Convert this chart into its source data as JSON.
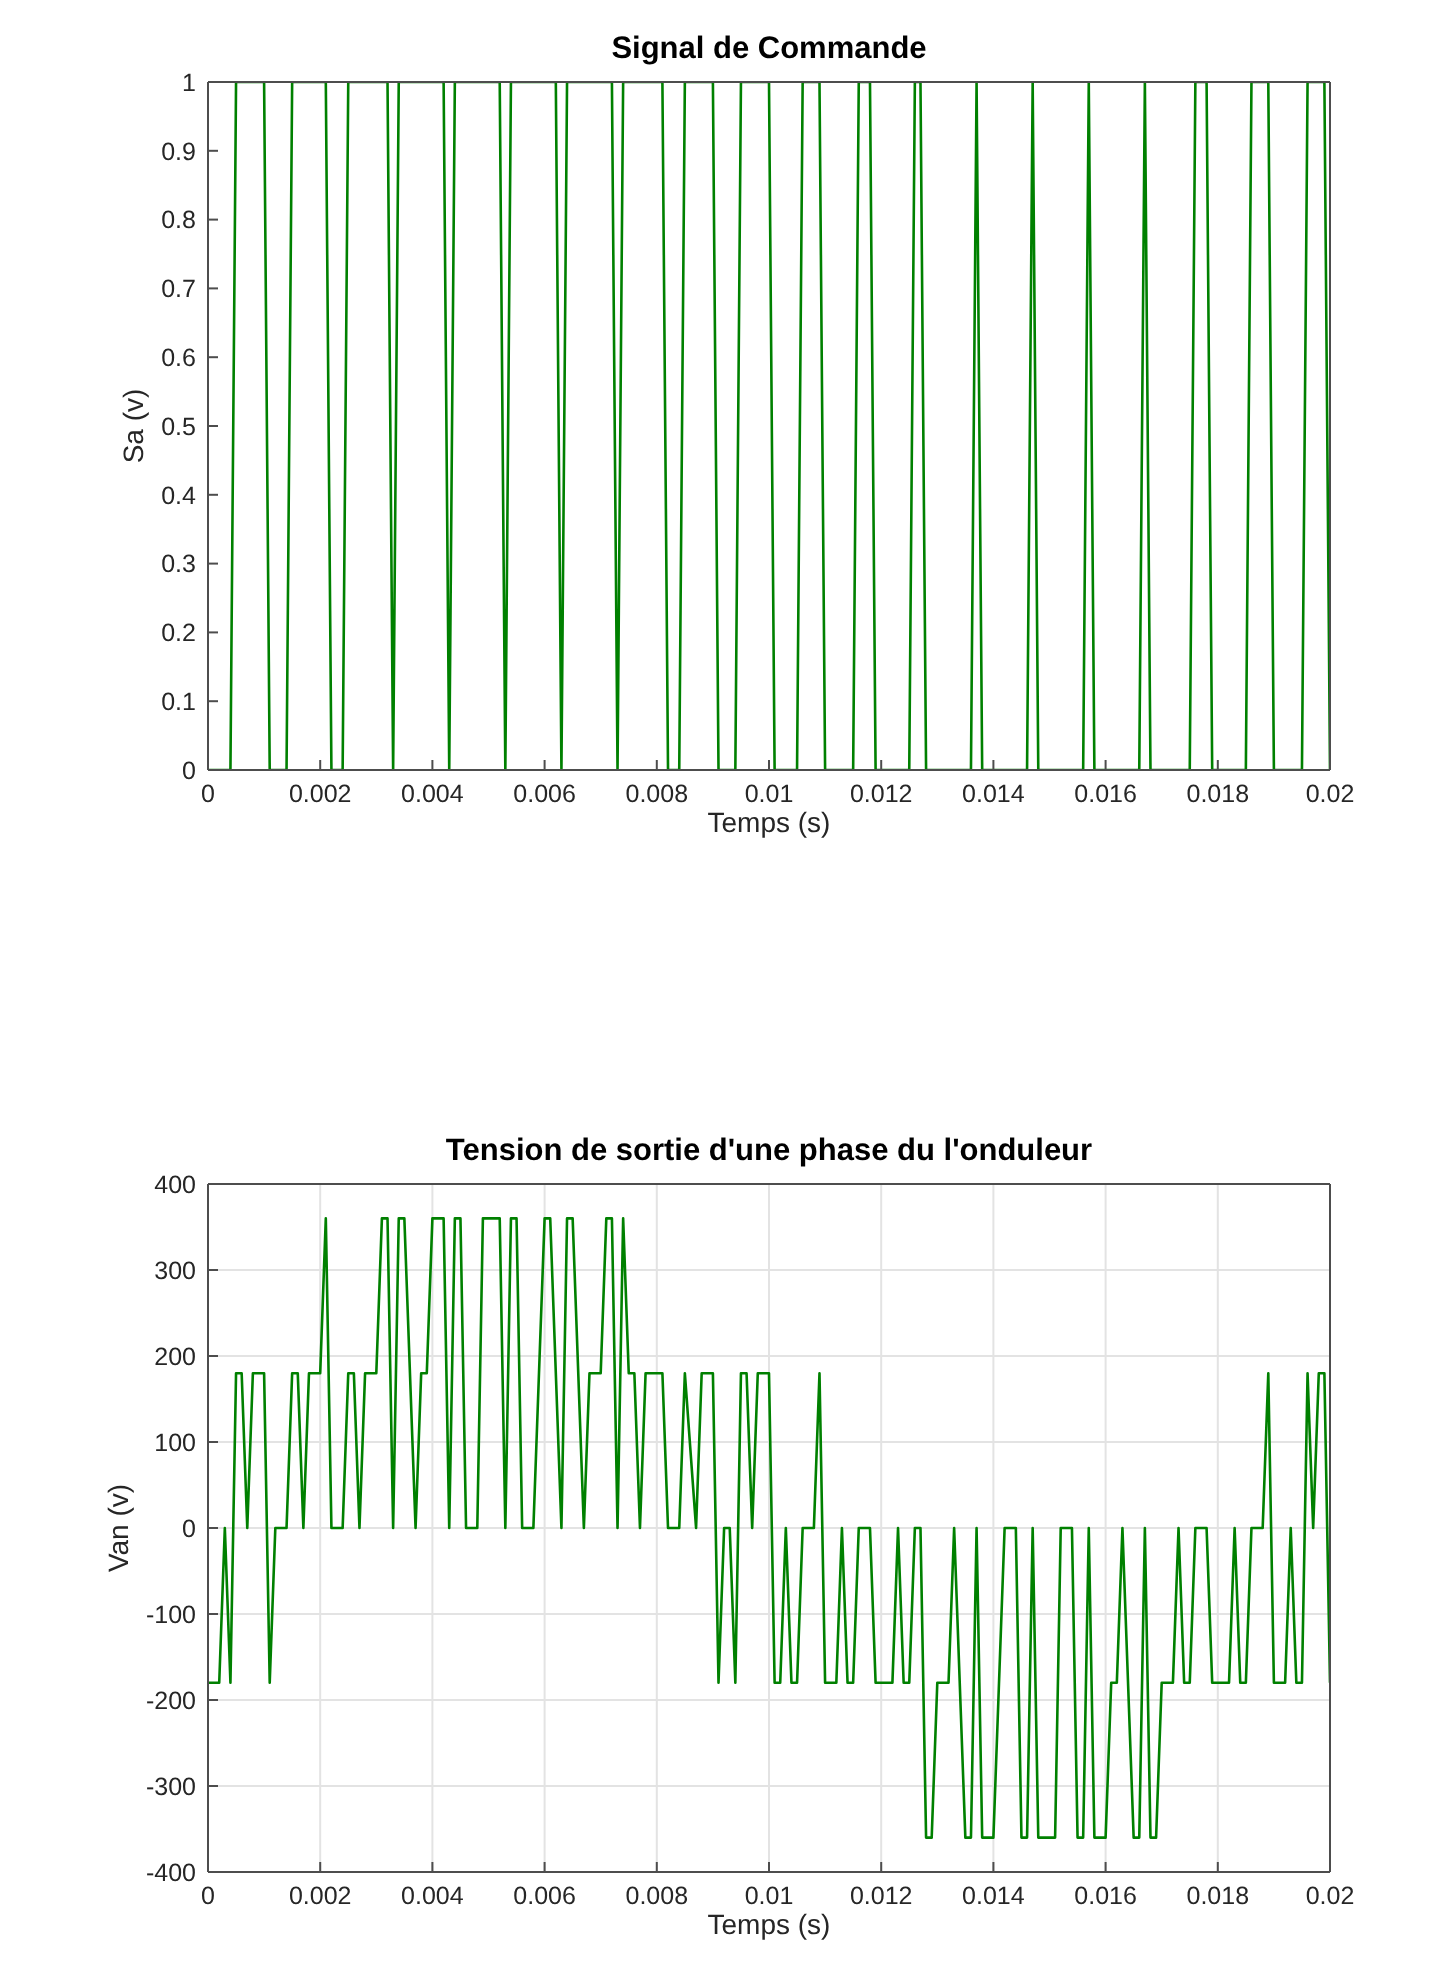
{
  "chart_data": [
    {
      "type": "line",
      "title": "Signal de Commande",
      "xlabel": "Temps (s)",
      "ylabel": "Sa (v)",
      "x": [
        0,
        0.0004,
        0.0005,
        0.001,
        0.0011,
        0.0014,
        0.0015,
        0.0021,
        0.0022,
        0.0024,
        0.0025,
        0.0032,
        0.0033,
        0.0034,
        0.0042,
        0.0043,
        0.0044,
        0.0052,
        0.0053,
        0.0054,
        0.0062,
        0.0063,
        0.0064,
        0.0072,
        0.0073,
        0.0074,
        0.0081,
        0.0082,
        0.0084,
        0.0085,
        0.009,
        0.0091,
        0.0094,
        0.0095,
        0.01,
        0.0101,
        0.0105,
        0.0106,
        0.0109,
        0.011,
        0.0115,
        0.0116,
        0.0118,
        0.0119,
        0.0125,
        0.0126,
        0.0127,
        0.0128,
        0.0136,
        0.0137,
        0.0138,
        0.0146,
        0.0147,
        0.0148,
        0.0156,
        0.0157,
        0.0158,
        0.0166,
        0.0167,
        0.0168,
        0.0175,
        0.0176,
        0.0178,
        0.0179,
        0.0185,
        0.0186,
        0.0189,
        0.019,
        0.0195,
        0.0196,
        0.0199,
        0.02
      ],
      "values": [
        0,
        0,
        1,
        1,
        0,
        0,
        1,
        1,
        0,
        0,
        1,
        1,
        0,
        1,
        1,
        0,
        1,
        1,
        0,
        1,
        1,
        0,
        1,
        1,
        0,
        1,
        1,
        0,
        0,
        1,
        1,
        0,
        0,
        1,
        1,
        0,
        0,
        1,
        1,
        0,
        0,
        1,
        1,
        0,
        0,
        1,
        1,
        0,
        0,
        1,
        0,
        0,
        1,
        0,
        0,
        1,
        0,
        0,
        1,
        0,
        0,
        1,
        1,
        0,
        0,
        1,
        1,
        0,
        0,
        1,
        1,
        0
      ],
      "color": "#008000",
      "xlim": [
        0,
        0.02
      ],
      "ylim": [
        0,
        1
      ],
      "xticks": [
        0,
        0.002,
        0.004,
        0.006,
        0.008,
        0.01,
        0.012,
        0.014,
        0.016,
        0.018,
        0.02
      ],
      "yticks": [
        0,
        0.1,
        0.2,
        0.3,
        0.4,
        0.5,
        0.6,
        0.7,
        0.8,
        0.9,
        1
      ]
    },
    {
      "type": "line",
      "title": "Tension de sortie d'une phase du l'onduleur",
      "xlabel": "Temps (s)",
      "ylabel": "Van (v)",
      "x": [
        0,
        0.0002,
        0.0003,
        0.0004,
        0.0005,
        0.0006,
        0.0007,
        0.0008,
        0.001,
        0.0011,
        0.0012,
        0.0014,
        0.0015,
        0.0016,
        0.0017,
        0.0018,
        0.002,
        0.0021,
        0.0022,
        0.0024,
        0.0025,
        0.0026,
        0.0027,
        0.0028,
        0.003,
        0.0031,
        0.0032,
        0.0033,
        0.0034,
        0.0035,
        0.0037,
        0.0038,
        0.0039,
        0.004,
        0.0042,
        0.0043,
        0.0044,
        0.0045,
        0.0046,
        0.0048,
        0.0049,
        0.0052,
        0.0053,
        0.0054,
        0.0055,
        0.0056,
        0.0058,
        0.006,
        0.0061,
        0.0063,
        0.0064,
        0.0065,
        0.0067,
        0.0068,
        0.007,
        0.0071,
        0.0072,
        0.0073,
        0.0074,
        0.0075,
        0.0076,
        0.0077,
        0.0078,
        0.0081,
        0.0082,
        0.0084,
        0.0085,
        0.0087,
        0.0088,
        0.009,
        0.0091,
        0.0092,
        0.0093,
        0.0094,
        0.0095,
        0.0096,
        0.0097,
        0.0098,
        0.01,
        0.0101,
        0.0102,
        0.0103,
        0.0104,
        0.0105,
        0.0106,
        0.0108,
        0.0109,
        0.011,
        0.0112,
        0.0113,
        0.0114,
        0.0115,
        0.0116,
        0.0118,
        0.0119,
        0.0122,
        0.0123,
        0.0124,
        0.0125,
        0.0126,
        0.0127,
        0.0128,
        0.0129,
        0.013,
        0.0132,
        0.0133,
        0.0135,
        0.0136,
        0.0137,
        0.0138,
        0.014,
        0.0142,
        0.0144,
        0.0145,
        0.0146,
        0.0147,
        0.0148,
        0.0151,
        0.0152,
        0.0154,
        0.0155,
        0.0156,
        0.0157,
        0.0158,
        0.016,
        0.0161,
        0.0162,
        0.0163,
        0.0165,
        0.0166,
        0.0167,
        0.0168,
        0.0169,
        0.017,
        0.0172,
        0.0173,
        0.0174,
        0.0175,
        0.0176,
        0.0178,
        0.0179,
        0.0182,
        0.0183,
        0.0184,
        0.0185,
        0.0186,
        0.0188,
        0.0189,
        0.019,
        0.0192,
        0.0193,
        0.0194,
        0.0195,
        0.0196,
        0.0197,
        0.0198,
        0.0199,
        0.02
      ],
      "values": [
        -180,
        -180,
        0,
        -180,
        180,
        180,
        0,
        180,
        180,
        -180,
        0,
        0,
        180,
        180,
        0,
        180,
        180,
        360,
        0,
        0,
        180,
        180,
        0,
        180,
        180,
        360,
        360,
        0,
        360,
        360,
        0,
        180,
        180,
        360,
        360,
        0,
        360,
        360,
        0,
        0,
        360,
        360,
        0,
        360,
        360,
        0,
        0,
        360,
        360,
        0,
        360,
        360,
        0,
        180,
        180,
        360,
        360,
        0,
        360,
        180,
        180,
        0,
        180,
        180,
        0,
        0,
        180,
        0,
        180,
        180,
        -180,
        0,
        0,
        -180,
        180,
        180,
        0,
        180,
        180,
        -180,
        -180,
        0,
        -180,
        -180,
        0,
        0,
        180,
        -180,
        -180,
        0,
        -180,
        -180,
        0,
        0,
        -180,
        -180,
        0,
        -180,
        -180,
        0,
        0,
        -360,
        -360,
        -180,
        -180,
        0,
        -360,
        -360,
        0,
        -360,
        -360,
        0,
        0,
        -360,
        -360,
        0,
        -360,
        -360,
        0,
        0,
        -360,
        -360,
        0,
        -360,
        -360,
        -180,
        -180,
        0,
        -360,
        -360,
        0,
        -360,
        -360,
        -180,
        -180,
        0,
        -180,
        -180,
        0,
        0,
        -180,
        -180,
        0,
        -180,
        -180,
        0,
        0,
        180,
        -180,
        -180,
        0,
        -180,
        -180,
        180,
        0,
        180,
        180,
        -180
      ],
      "color": "#008000",
      "xlim": [
        0,
        0.02
      ],
      "ylim": [
        -400,
        400
      ],
      "xticks": [
        0,
        0.002,
        0.004,
        0.006,
        0.008,
        0.01,
        0.012,
        0.014,
        0.016,
        0.018,
        0.02
      ],
      "yticks": [
        -400,
        -300,
        -200,
        -100,
        0,
        100,
        200,
        300,
        400
      ],
      "grid": true
    }
  ]
}
